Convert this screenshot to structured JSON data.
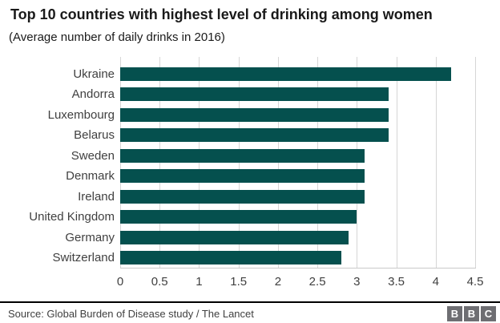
{
  "header": {
    "title": "Top 10 countries with highest level of drinking among women",
    "subtitle": "(Average number of daily drinks in 2016)"
  },
  "chart_data": {
    "type": "bar",
    "orientation": "horizontal",
    "title": "Top 10 countries with highest level of drinking among women",
    "subtitle": "(Average number of daily drinks in 2016)",
    "categories": [
      "Ukraine",
      "Andorra",
      "Luxembourg",
      "Belarus",
      "Sweden",
      "Denmark",
      "Ireland",
      "United Kingdom",
      "Germany",
      "Switzerland"
    ],
    "values": [
      4.2,
      3.4,
      3.4,
      3.4,
      3.1,
      3.1,
      3.1,
      3.0,
      2.9,
      2.8
    ],
    "xlabel": "",
    "ylabel": "",
    "xlim": [
      0,
      4.5
    ],
    "xtick_labels": [
      "0",
      "0.5",
      "1",
      "1.5",
      "2",
      "2.5",
      "3",
      "3.5",
      "4",
      "4.5"
    ],
    "grid": true,
    "legend": "none",
    "bar_color": "#05504e"
  },
  "colors": {
    "bar": "#05504e",
    "gridline": "#d6d6d6",
    "axis_line": "#c9c9c9",
    "title_text": "#1a1a1a",
    "tick_text": "#404040",
    "source_text": "#404040",
    "footer_rule": "#000000",
    "bbc_block": "#6e6e72"
  },
  "footer": {
    "source": "Source: Global Burden of Disease study / The Lancet",
    "bbc_logo_letters": [
      "B",
      "B",
      "C"
    ]
  }
}
